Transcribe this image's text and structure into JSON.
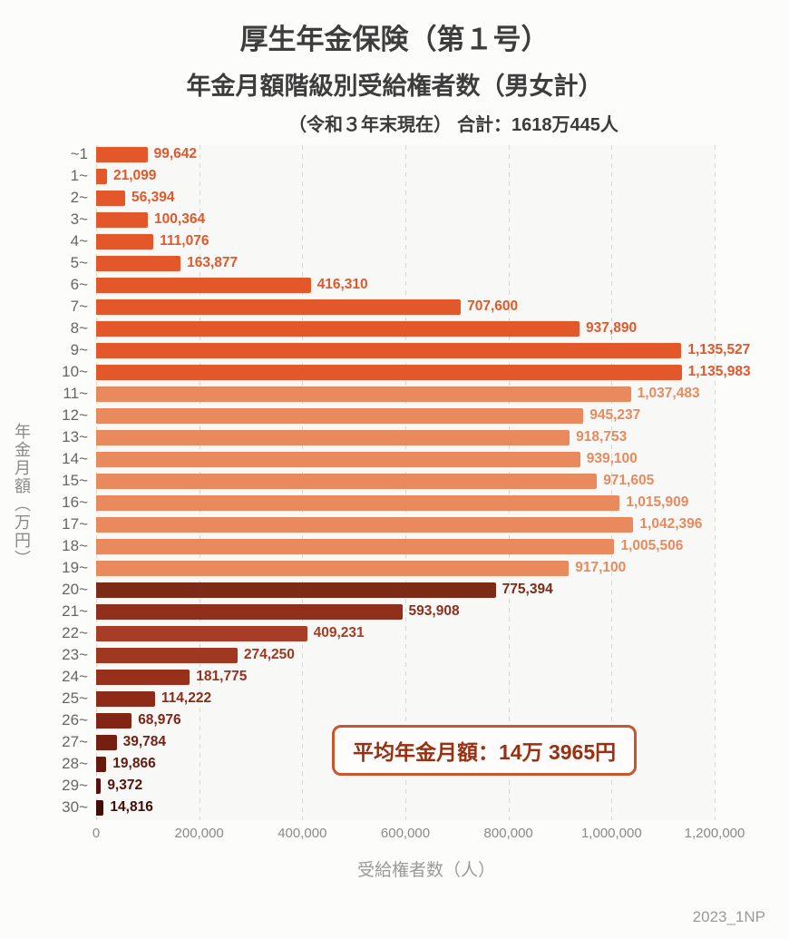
{
  "header": {
    "title": "厚生年金保険（第１号）",
    "subtitle": "年金月額階級別受給権者数（男女計）",
    "note_prefix": "（令和３年末現在）",
    "note_total": "合計：1618万445人"
  },
  "chart_data": {
    "type": "bar",
    "orientation": "horizontal",
    "title": "厚生年金保険（第１号）年金月額階級別受給権者数（男女計）",
    "xlabel": "受給権者数（人）",
    "ylabel": "年金月額（万円）",
    "xlim": [
      0,
      1200000
    ],
    "grid": "dashed-vertical",
    "categories": [
      "~1",
      "1~",
      "2~",
      "3~",
      "4~",
      "5~",
      "6~",
      "7~",
      "8~",
      "9~",
      "10~",
      "11~",
      "12~",
      "13~",
      "14~",
      "15~",
      "16~",
      "17~",
      "18~",
      "19~",
      "20~",
      "21~",
      "22~",
      "23~",
      "24~",
      "25~",
      "26~",
      "27~",
      "28~",
      "29~",
      "30~"
    ],
    "values": [
      99642,
      21099,
      56394,
      100364,
      111076,
      163877,
      416310,
      707600,
      937890,
      1135527,
      1135983,
      1037483,
      945237,
      918753,
      939100,
      971605,
      1015909,
      1042396,
      1005506,
      917100,
      775394,
      593908,
      409231,
      274250,
      181775,
      114222,
      68976,
      39784,
      19866,
      9372,
      14816
    ],
    "value_labels": [
      "99,642",
      "21,099",
      "56,394",
      "100,364",
      "111,076",
      "163,877",
      "416,310",
      "707,600",
      "937,890",
      "1,135,527",
      "1,135,983",
      "1,037,483",
      "945,237",
      "918,753",
      "939,100",
      "971,605",
      "1,015,909",
      "1,042,396",
      "1,005,506",
      "917,100",
      "775,394",
      "593,908",
      "409,231",
      "274,250",
      "181,775",
      "114,222",
      "68,976",
      "39,784",
      "19,866",
      "9,372",
      "14,816"
    ],
    "bar_colors": [
      "#e2582a",
      "#e2582a",
      "#e2582a",
      "#e2582a",
      "#e2582a",
      "#e2582a",
      "#e2582a",
      "#e2582a",
      "#e2582a",
      "#e2582a",
      "#e2582a",
      "#e88a5e",
      "#e88a5e",
      "#e88a5e",
      "#e88a5e",
      "#e88a5e",
      "#e88a5e",
      "#e88a5e",
      "#e88a5e",
      "#e88a5e",
      "#7c2b16",
      "#8f2f1c",
      "#a83c26",
      "#a0371f",
      "#97311c",
      "#8d2b18",
      "#822514",
      "#741f10",
      "#651a0d",
      "#54130a",
      "#420d07"
    ],
    "x_tick_labels": [
      "0",
      "200,000",
      "400,000",
      "600,000",
      "800,000",
      "1,000,000",
      "1,200,000"
    ]
  },
  "annotation": {
    "text": "平均年金月額：14万 3965円"
  },
  "footer": {
    "watermark": "2023_1NP"
  }
}
